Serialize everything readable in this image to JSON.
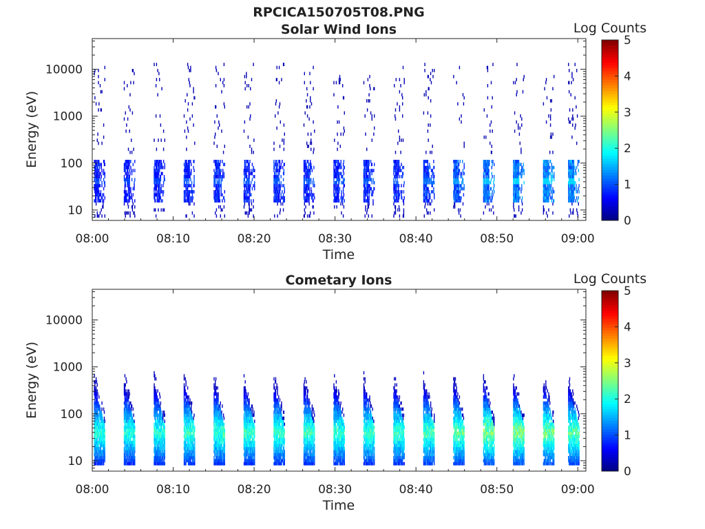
{
  "figure_title": "RPCICA150705T08.PNG",
  "chart_data": [
    {
      "type": "heatmap",
      "title": "Solar Wind Ions",
      "xlabel": "Time",
      "ylabel": "Energy (eV)",
      "x_ticks": [
        "08:00",
        "08:10",
        "08:20",
        "08:30",
        "08:40",
        "08:50",
        "09:00"
      ],
      "xlim_minutes": [
        0,
        61
      ],
      "y_ticks": [
        10,
        100,
        1000,
        10000
      ],
      "ylim": [
        6,
        45000
      ],
      "y_scale": "log",
      "colorbar": {
        "label": "Log Counts",
        "ticks": [
          0,
          1,
          2,
          3,
          4,
          5
        ],
        "range": [
          0,
          5
        ],
        "colormap": "jet"
      },
      "sweep_period_minutes": 3.7,
      "sweeps": [
        {
          "t": 0.7,
          "peak_log_counts": 0.9
        },
        {
          "t": 4.4,
          "peak_log_counts": 0.9
        },
        {
          "t": 8.1,
          "peak_log_counts": 0.9
        },
        {
          "t": 11.8,
          "peak_log_counts": 1.0
        },
        {
          "t": 15.5,
          "peak_log_counts": 1.0
        },
        {
          "t": 19.2,
          "peak_log_counts": 1.0
        },
        {
          "t": 22.9,
          "peak_log_counts": 1.0
        },
        {
          "t": 26.6,
          "peak_log_counts": 1.0
        },
        {
          "t": 30.3,
          "peak_log_counts": 1.0
        },
        {
          "t": 34.0,
          "peak_log_counts": 1.0
        },
        {
          "t": 37.7,
          "peak_log_counts": 1.0
        },
        {
          "t": 41.4,
          "peak_log_counts": 1.1
        },
        {
          "t": 45.1,
          "peak_log_counts": 1.3
        },
        {
          "t": 48.8,
          "peak_log_counts": 1.5
        },
        {
          "t": 52.5,
          "peak_log_counts": 1.6
        },
        {
          "t": 56.2,
          "peak_log_counts": 1.6
        },
        {
          "t": 59.3,
          "peak_log_counts": 1.6
        }
      ],
      "core_energy_range_eV": [
        15,
        110
      ],
      "sparse_energy_range_eV": [
        150,
        13000
      ]
    },
    {
      "type": "heatmap",
      "title": "Cometary Ions",
      "xlabel": "Time",
      "ylabel": "Energy (eV)",
      "x_ticks": [
        "08:00",
        "08:10",
        "08:20",
        "08:30",
        "08:40",
        "08:50",
        "09:00"
      ],
      "xlim_minutes": [
        0,
        61
      ],
      "y_ticks": [
        10,
        100,
        1000,
        10000
      ],
      "ylim": [
        6,
        45000
      ],
      "y_scale": "log",
      "colorbar": {
        "label": "Log Counts",
        "ticks": [
          0,
          1,
          2,
          3,
          4,
          5
        ],
        "range": [
          0,
          5
        ],
        "colormap": "jet"
      },
      "sweep_period_minutes": 3.7,
      "sweeps": [
        {
          "t": 0.7,
          "peak_log_counts": 2.2
        },
        {
          "t": 4.4,
          "peak_log_counts": 2.2
        },
        {
          "t": 8.1,
          "peak_log_counts": 2.2
        },
        {
          "t": 11.8,
          "peak_log_counts": 2.3
        },
        {
          "t": 15.5,
          "peak_log_counts": 2.3
        },
        {
          "t": 19.2,
          "peak_log_counts": 2.3
        },
        {
          "t": 22.9,
          "peak_log_counts": 2.3
        },
        {
          "t": 26.6,
          "peak_log_counts": 2.3
        },
        {
          "t": 30.3,
          "peak_log_counts": 2.3
        },
        {
          "t": 34.0,
          "peak_log_counts": 2.3
        },
        {
          "t": 37.7,
          "peak_log_counts": 2.3
        },
        {
          "t": 41.4,
          "peak_log_counts": 2.4
        },
        {
          "t": 45.1,
          "peak_log_counts": 2.5
        },
        {
          "t": 48.8,
          "peak_log_counts": 2.7
        },
        {
          "t": 52.5,
          "peak_log_counts": 2.7
        },
        {
          "t": 56.2,
          "peak_log_counts": 2.6
        },
        {
          "t": 59.3,
          "peak_log_counts": 2.5
        }
      ],
      "core_energy_range_eV": [
        8,
        450
      ]
    }
  ]
}
